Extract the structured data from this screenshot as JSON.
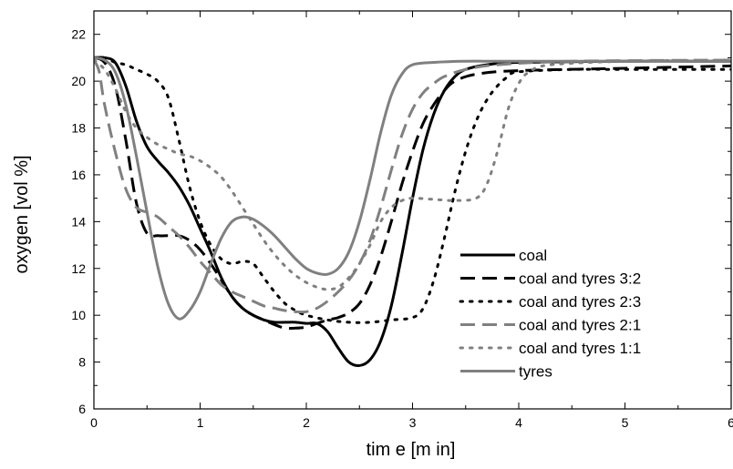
{
  "chart_data": {
    "type": "line",
    "xlabel": "tim e  [m in]",
    "ylabel": "oxygen [vol %]",
    "xlim": [
      0,
      6
    ],
    "ylim": [
      6,
      23
    ],
    "xticks": [
      0,
      1,
      2,
      3,
      4,
      5,
      6
    ],
    "xtick_labels": [
      "0",
      "1",
      "2",
      "3",
      "4",
      "5",
      "6"
    ],
    "yticks": [
      6,
      8,
      10,
      12,
      14,
      16,
      18,
      20,
      22
    ],
    "ytick_labels": [
      "6",
      "8",
      "10",
      "12",
      "14",
      "16",
      "18",
      "20",
      "22"
    ],
    "grid": false,
    "legend_position": "right",
    "series": [
      {
        "name": "coal",
        "color": "#000000",
        "dash": "solid",
        "points": [
          [
            0,
            21
          ],
          [
            0.1,
            21
          ],
          [
            0.2,
            20.8
          ],
          [
            0.3,
            19.8
          ],
          [
            0.4,
            18.3
          ],
          [
            0.5,
            17.2
          ],
          [
            0.6,
            16.6
          ],
          [
            0.7,
            16.1
          ],
          [
            0.8,
            15.5
          ],
          [
            0.9,
            14.7
          ],
          [
            1.0,
            13.7
          ],
          [
            1.1,
            12.7
          ],
          [
            1.2,
            11.6
          ],
          [
            1.3,
            10.8
          ],
          [
            1.4,
            10.3
          ],
          [
            1.5,
            10.0
          ],
          [
            1.6,
            9.8
          ],
          [
            1.7,
            9.7
          ],
          [
            1.8,
            9.7
          ],
          [
            1.9,
            9.7
          ],
          [
            2.0,
            9.65
          ],
          [
            2.1,
            9.65
          ],
          [
            2.2,
            9.3
          ],
          [
            2.3,
            8.6
          ],
          [
            2.4,
            8.0
          ],
          [
            2.5,
            7.85
          ],
          [
            2.6,
            8.1
          ],
          [
            2.7,
            8.9
          ],
          [
            2.8,
            10.4
          ],
          [
            2.9,
            12.6
          ],
          [
            3.0,
            15.0
          ],
          [
            3.1,
            17.1
          ],
          [
            3.2,
            18.6
          ],
          [
            3.3,
            19.6
          ],
          [
            3.4,
            20.2
          ],
          [
            3.5,
            20.5
          ],
          [
            3.7,
            20.7
          ],
          [
            4.0,
            20.8
          ],
          [
            5.0,
            20.85
          ],
          [
            6.0,
            20.85
          ]
        ]
      },
      {
        "name": "coal and tyres 3:2",
        "color": "#000000",
        "dash": "long",
        "points": [
          [
            0,
            21
          ],
          [
            0.1,
            20.8
          ],
          [
            0.2,
            19.8
          ],
          [
            0.3,
            17.5
          ],
          [
            0.4,
            14.8
          ],
          [
            0.5,
            13.5
          ],
          [
            0.6,
            13.4
          ],
          [
            0.7,
            13.4
          ],
          [
            0.8,
            13.4
          ],
          [
            0.9,
            13.2
          ],
          [
            1.0,
            12.8
          ],
          [
            1.1,
            12.2
          ],
          [
            1.2,
            11.5
          ],
          [
            1.3,
            10.8
          ],
          [
            1.4,
            10.3
          ],
          [
            1.5,
            10.0
          ],
          [
            1.6,
            9.8
          ],
          [
            1.7,
            9.6
          ],
          [
            1.8,
            9.45
          ],
          [
            1.9,
            9.45
          ],
          [
            2.0,
            9.5
          ],
          [
            2.1,
            9.65
          ],
          [
            2.2,
            9.8
          ],
          [
            2.3,
            9.9
          ],
          [
            2.4,
            10.1
          ],
          [
            2.5,
            10.5
          ],
          [
            2.6,
            11.3
          ],
          [
            2.7,
            12.5
          ],
          [
            2.8,
            14.0
          ],
          [
            2.9,
            15.6
          ],
          [
            3.0,
            17.0
          ],
          [
            3.1,
            18.2
          ],
          [
            3.2,
            19.0
          ],
          [
            3.3,
            19.6
          ],
          [
            3.4,
            20.0
          ],
          [
            3.6,
            20.3
          ],
          [
            4.0,
            20.45
          ],
          [
            5.0,
            20.55
          ],
          [
            6.0,
            20.65
          ]
        ]
      },
      {
        "name": "coal and tyres 2:3",
        "color": "#000000",
        "dash": "dot",
        "points": [
          [
            0,
            21
          ],
          [
            0.1,
            21
          ],
          [
            0.2,
            20.8
          ],
          [
            0.3,
            20.7
          ],
          [
            0.4,
            20.5
          ],
          [
            0.5,
            20.3
          ],
          [
            0.6,
            20.0
          ],
          [
            0.7,
            19.3
          ],
          [
            0.8,
            17.5
          ],
          [
            0.9,
            15.5
          ],
          [
            1.0,
            14.0
          ],
          [
            1.1,
            13.0
          ],
          [
            1.2,
            12.4
          ],
          [
            1.3,
            12.2
          ],
          [
            1.4,
            12.3
          ],
          [
            1.5,
            12.2
          ],
          [
            1.6,
            11.6
          ],
          [
            1.7,
            11.0
          ],
          [
            1.8,
            10.5
          ],
          [
            1.9,
            10.2
          ],
          [
            2.0,
            10.0
          ],
          [
            2.2,
            9.8
          ],
          [
            2.4,
            9.7
          ],
          [
            2.6,
            9.7
          ],
          [
            2.8,
            9.8
          ],
          [
            3.0,
            9.9
          ],
          [
            3.1,
            10.3
          ],
          [
            3.2,
            11.5
          ],
          [
            3.3,
            13.3
          ],
          [
            3.4,
            15.3
          ],
          [
            3.5,
            17.0
          ],
          [
            3.6,
            18.3
          ],
          [
            3.7,
            19.2
          ],
          [
            3.8,
            19.8
          ],
          [
            3.9,
            20.2
          ],
          [
            4.0,
            20.4
          ],
          [
            4.5,
            20.5
          ],
          [
            5.0,
            20.5
          ],
          [
            6.0,
            20.5
          ]
        ]
      },
      {
        "name": "coal and tyres 2:1",
        "color": "#808080",
        "dash": "long",
        "points": [
          [
            0,
            20.9
          ],
          [
            0.05,
            20.4
          ],
          [
            0.1,
            19.0
          ],
          [
            0.2,
            17.0
          ],
          [
            0.3,
            15.4
          ],
          [
            0.4,
            14.6
          ],
          [
            0.5,
            14.4
          ],
          [
            0.6,
            14.2
          ],
          [
            0.7,
            13.8
          ],
          [
            0.8,
            13.4
          ],
          [
            0.9,
            12.9
          ],
          [
            1.0,
            12.3
          ],
          [
            1.1,
            11.8
          ],
          [
            1.2,
            11.3
          ],
          [
            1.3,
            11.0
          ],
          [
            1.4,
            10.8
          ],
          [
            1.5,
            10.6
          ],
          [
            1.6,
            10.4
          ],
          [
            1.7,
            10.3
          ],
          [
            1.8,
            10.2
          ],
          [
            1.9,
            10.15
          ],
          [
            2.0,
            10.15
          ],
          [
            2.1,
            10.3
          ],
          [
            2.2,
            10.6
          ],
          [
            2.3,
            11.0
          ],
          [
            2.4,
            11.5
          ],
          [
            2.5,
            12.2
          ],
          [
            2.6,
            13.2
          ],
          [
            2.7,
            14.6
          ],
          [
            2.8,
            16.2
          ],
          [
            2.9,
            17.7
          ],
          [
            3.0,
            18.8
          ],
          [
            3.1,
            19.5
          ],
          [
            3.2,
            19.9
          ],
          [
            3.3,
            20.2
          ],
          [
            3.5,
            20.5
          ],
          [
            3.8,
            20.7
          ],
          [
            4.5,
            20.85
          ],
          [
            6.0,
            20.9
          ]
        ]
      },
      {
        "name": "coal and tyres 1:1",
        "color": "#808080",
        "dash": "dot",
        "points": [
          [
            0,
            20.9
          ],
          [
            0.1,
            20.5
          ],
          [
            0.2,
            19.7
          ],
          [
            0.3,
            18.7
          ],
          [
            0.4,
            18.0
          ],
          [
            0.5,
            17.6
          ],
          [
            0.6,
            17.3
          ],
          [
            0.7,
            17.1
          ],
          [
            0.8,
            16.9
          ],
          [
            0.9,
            16.8
          ],
          [
            1.0,
            16.6
          ],
          [
            1.1,
            16.3
          ],
          [
            1.2,
            15.9
          ],
          [
            1.3,
            15.3
          ],
          [
            1.4,
            14.6
          ],
          [
            1.5,
            13.9
          ],
          [
            1.6,
            13.2
          ],
          [
            1.7,
            12.6
          ],
          [
            1.8,
            12.1
          ],
          [
            1.9,
            11.7
          ],
          [
            2.0,
            11.4
          ],
          [
            2.1,
            11.2
          ],
          [
            2.2,
            11.1
          ],
          [
            2.3,
            11.2
          ],
          [
            2.4,
            11.6
          ],
          [
            2.5,
            12.2
          ],
          [
            2.6,
            13.0
          ],
          [
            2.7,
            14.0
          ],
          [
            2.8,
            14.6
          ],
          [
            2.9,
            14.9
          ],
          [
            3.0,
            15.0
          ],
          [
            3.2,
            14.95
          ],
          [
            3.4,
            14.9
          ],
          [
            3.6,
            15.0
          ],
          [
            3.7,
            15.6
          ],
          [
            3.8,
            17.0
          ],
          [
            3.9,
            18.8
          ],
          [
            4.0,
            19.9
          ],
          [
            4.1,
            20.4
          ],
          [
            4.3,
            20.7
          ],
          [
            5.0,
            20.85
          ],
          [
            6.0,
            20.9
          ]
        ]
      },
      {
        "name": "tyres",
        "color": "#808080",
        "dash": "solid",
        "points": [
          [
            0,
            21
          ],
          [
            0.1,
            20.9
          ],
          [
            0.2,
            20.4
          ],
          [
            0.3,
            19.0
          ],
          [
            0.4,
            16.8
          ],
          [
            0.5,
            14.4
          ],
          [
            0.6,
            12.1
          ],
          [
            0.7,
            10.5
          ],
          [
            0.8,
            9.85
          ],
          [
            0.9,
            10.2
          ],
          [
            1.0,
            11.0
          ],
          [
            1.1,
            12.2
          ],
          [
            1.2,
            13.3
          ],
          [
            1.3,
            14.0
          ],
          [
            1.4,
            14.2
          ],
          [
            1.5,
            14.1
          ],
          [
            1.6,
            13.8
          ],
          [
            1.7,
            13.4
          ],
          [
            1.8,
            12.9
          ],
          [
            1.9,
            12.4
          ],
          [
            2.0,
            12.0
          ],
          [
            2.1,
            11.8
          ],
          [
            2.2,
            11.75
          ],
          [
            2.3,
            12.0
          ],
          [
            2.4,
            12.7
          ],
          [
            2.5,
            14.0
          ],
          [
            2.6,
            15.8
          ],
          [
            2.7,
            17.8
          ],
          [
            2.8,
            19.4
          ],
          [
            2.9,
            20.3
          ],
          [
            3.0,
            20.7
          ],
          [
            3.2,
            20.8
          ],
          [
            3.5,
            20.85
          ],
          [
            4.0,
            20.85
          ],
          [
            6.0,
            20.85
          ]
        ]
      }
    ]
  }
}
